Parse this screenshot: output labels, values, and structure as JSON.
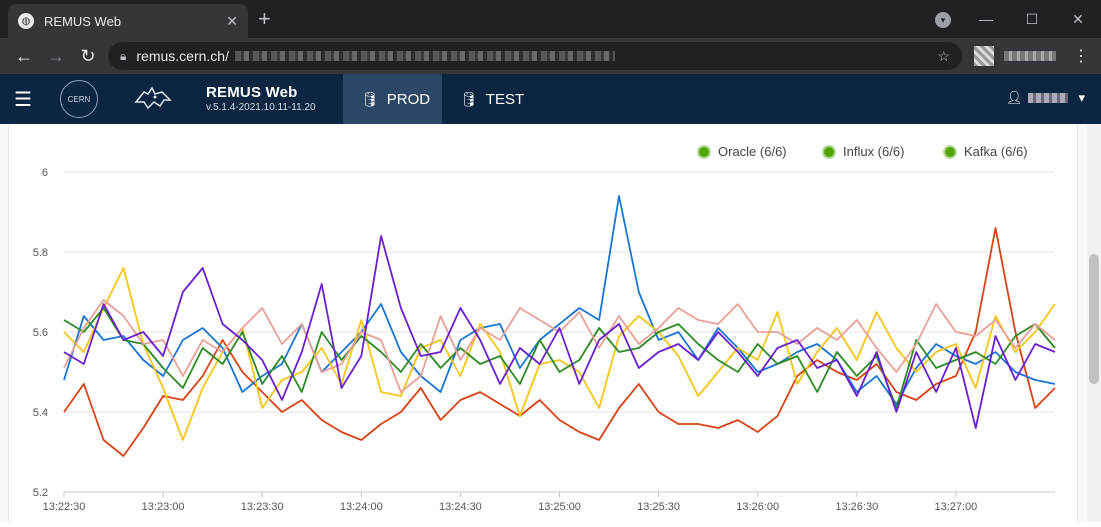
{
  "browser": {
    "tab_title": "REMUS Web",
    "url_host": "remus.cern.ch/",
    "close_glyph": "✕",
    "new_tab_glyph": "+"
  },
  "app": {
    "name": "REMUS Web",
    "version": "v.5.1.4-2021.10.11-11.20",
    "tabs": [
      {
        "label": "PROD",
        "active": true
      },
      {
        "label": "TEST",
        "active": false
      }
    ],
    "logo_text": "CERN"
  },
  "chart_data": {
    "type": "line",
    "ylim": [
      5.2,
      6.0
    ],
    "yticks": [
      5.2,
      5.4,
      5.6,
      5.8,
      6
    ],
    "xlim": [
      "13:22:30",
      "13:27:30"
    ],
    "xticks": [
      "13:22:30",
      "13:23:00",
      "13:23:30",
      "13:24:00",
      "13:24:30",
      "13:25:00",
      "13:25:30",
      "13:26:00",
      "13:26:30",
      "13:27:00"
    ],
    "legend": [
      {
        "label": "Oracle (6/6)",
        "color": "#52a400"
      },
      {
        "label": "Influx (6/6)",
        "color": "#52a400"
      },
      {
        "label": "Kafka (6/6)",
        "color": "#52a400"
      }
    ],
    "legend_position": "top-right",
    "grid": "horizontal",
    "x": [
      0,
      6,
      12,
      18,
      24,
      30,
      36,
      42,
      48,
      54,
      60,
      66,
      72,
      78,
      84,
      90,
      96,
      102,
      108,
      114,
      120,
      126,
      132,
      138,
      144,
      150,
      156,
      162,
      168,
      174,
      180,
      186,
      192,
      198,
      204,
      210,
      216,
      222,
      228,
      234,
      240,
      246,
      252,
      258,
      264,
      270,
      276,
      282,
      288,
      294,
      300
    ],
    "series": [
      {
        "color": "#d84315",
        "values": [
          5.4,
          5.47,
          5.33,
          5.29,
          5.36,
          5.44,
          5.43,
          5.49,
          5.58,
          5.5,
          5.45,
          5.4,
          5.43,
          5.38,
          5.35,
          5.33,
          5.37,
          5.4,
          5.46,
          5.38,
          5.43,
          5.45,
          5.42,
          5.39,
          5.43,
          5.38,
          5.35,
          5.33,
          5.41,
          5.47,
          5.4,
          5.37,
          5.37,
          5.36,
          5.38,
          5.35,
          5.39,
          5.49,
          5.53,
          5.5,
          5.48,
          5.52,
          5.45,
          5.43,
          5.47,
          5.49,
          5.6,
          5.86,
          5.6,
          5.41,
          5.46
        ]
      },
      {
        "color": "#1976d2",
        "values": [
          5.48,
          5.64,
          5.58,
          5.59,
          5.53,
          5.49,
          5.58,
          5.61,
          5.56,
          5.45,
          5.49,
          5.52,
          5.62,
          5.5,
          5.55,
          5.6,
          5.67,
          5.55,
          5.49,
          5.45,
          5.58,
          5.61,
          5.62,
          5.51,
          5.58,
          5.62,
          5.66,
          5.63,
          5.94,
          5.7,
          5.58,
          5.6,
          5.53,
          5.61,
          5.56,
          5.5,
          5.52,
          5.55,
          5.57,
          5.53,
          5.45,
          5.49,
          5.42,
          5.51,
          5.57,
          5.54,
          5.52,
          5.55,
          5.5,
          5.48,
          5.47
        ]
      },
      {
        "color": "#f5c518",
        "values": [
          5.6,
          5.55,
          5.66,
          5.76,
          5.57,
          5.46,
          5.33,
          5.46,
          5.55,
          5.61,
          5.41,
          5.48,
          5.5,
          5.56,
          5.47,
          5.63,
          5.45,
          5.44,
          5.56,
          5.58,
          5.49,
          5.62,
          5.55,
          5.39,
          5.52,
          5.53,
          5.5,
          5.41,
          5.59,
          5.64,
          5.6,
          5.54,
          5.44,
          5.5,
          5.56,
          5.53,
          5.65,
          5.47,
          5.55,
          5.61,
          5.53,
          5.65,
          5.56,
          5.5,
          5.55,
          5.57,
          5.46,
          5.64,
          5.55,
          5.6,
          5.67
        ]
      },
      {
        "color": "#2e8b24",
        "values": [
          5.63,
          5.6,
          5.66,
          5.58,
          5.57,
          5.51,
          5.46,
          5.56,
          5.52,
          5.6,
          5.47,
          5.54,
          5.45,
          5.6,
          5.53,
          5.59,
          5.55,
          5.5,
          5.57,
          5.51,
          5.56,
          5.52,
          5.54,
          5.47,
          5.58,
          5.5,
          5.53,
          5.61,
          5.55,
          5.56,
          5.6,
          5.62,
          5.57,
          5.53,
          5.5,
          5.57,
          5.52,
          5.54,
          5.45,
          5.55,
          5.49,
          5.54,
          5.41,
          5.58,
          5.51,
          5.53,
          5.55,
          5.52,
          5.59,
          5.62,
          5.56
        ]
      },
      {
        "color": "#e8a096",
        "values": [
          5.51,
          5.61,
          5.68,
          5.64,
          5.57,
          5.58,
          5.49,
          5.58,
          5.55,
          5.61,
          5.66,
          5.57,
          5.62,
          5.5,
          5.52,
          5.6,
          5.58,
          5.45,
          5.49,
          5.64,
          5.53,
          5.61,
          5.58,
          5.66,
          5.63,
          5.6,
          5.65,
          5.56,
          5.64,
          5.57,
          5.61,
          5.66,
          5.63,
          5.62,
          5.67,
          5.6,
          5.6,
          5.57,
          5.61,
          5.58,
          5.63,
          5.56,
          5.5,
          5.57,
          5.67,
          5.6,
          5.59,
          5.63,
          5.56,
          5.62,
          5.58
        ]
      },
      {
        "color": "#6a1fd0",
        "values": [
          5.55,
          5.52,
          5.67,
          5.58,
          5.6,
          5.54,
          5.7,
          5.76,
          5.62,
          5.58,
          5.53,
          5.43,
          5.55,
          5.72,
          5.46,
          5.54,
          5.84,
          5.66,
          5.54,
          5.55,
          5.66,
          5.58,
          5.47,
          5.56,
          5.52,
          5.61,
          5.47,
          5.58,
          5.62,
          5.51,
          5.55,
          5.57,
          5.53,
          5.6,
          5.55,
          5.49,
          5.56,
          5.58,
          5.51,
          5.53,
          5.44,
          5.55,
          5.4,
          5.55,
          5.45,
          5.56,
          5.36,
          5.59,
          5.48,
          5.57,
          5.55
        ]
      }
    ]
  }
}
